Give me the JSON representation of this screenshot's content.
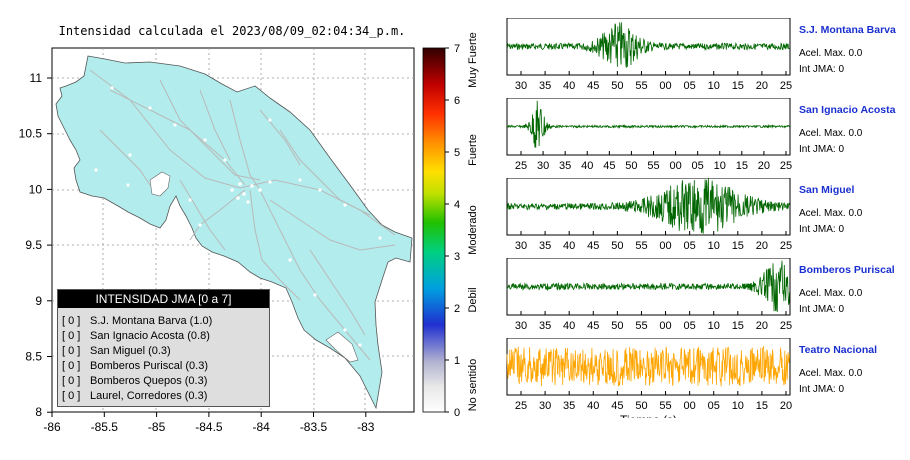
{
  "map": {
    "title": "Intensidad calculada el 2023/08/09_02:04:34_p.m.",
    "x_ticks": [
      "-86",
      "-85.5",
      "-85",
      "-84.5",
      "-84",
      "-83.5",
      "-83"
    ],
    "y_ticks": [
      "11",
      "10.5",
      "10",
      "9.5",
      "9",
      "8.5",
      "8"
    ],
    "land_color": "#b2ecec",
    "road_color": "#b9b9b9"
  },
  "legend": {
    "title": "INTENSIDAD JMA [0 a 7]",
    "items": [
      {
        "badge": "[ 0 ]",
        "label": "S.J. Montana Barva (1.0)"
      },
      {
        "badge": "[ 0 ]",
        "label": "San Ignacio Acosta (0.8)"
      },
      {
        "badge": "[ 0 ]",
        "label": "San Miguel (0.3)"
      },
      {
        "badge": "[ 0 ]",
        "label": "Bomberos Puriscal (0.3)"
      },
      {
        "badge": "[ 0 ]",
        "label": "Bomberos Quepos (0.3)"
      },
      {
        "badge": "[ 0 ]",
        "label": "Laurel, Corredores (0.3)"
      }
    ]
  },
  "colorbar": {
    "ticks": [
      "0",
      "1",
      "2",
      "3",
      "4",
      "5",
      "6",
      "7"
    ],
    "labels": [
      "No sentido",
      "Debil",
      "Moderado",
      "Fuerte",
      "Muy Fuerte"
    ]
  },
  "chart_data": [
    {
      "type": "line",
      "name": "S.J. Montana Barva",
      "accel": "Acel. Max. 0.0",
      "jma": "Int JMA: 0",
      "color": "#006600",
      "x_ticks": [
        "30",
        "35",
        "40",
        "45",
        "50",
        "55",
        "00",
        "05",
        "10",
        "15",
        "20",
        "25"
      ],
      "bursts": [
        {
          "t": 0.4,
          "w": 0.07,
          "a": 0.85
        }
      ],
      "noise": 0.12
    },
    {
      "type": "line",
      "name": "San Ignacio Acosta",
      "accel": "Acel. Max. 0.0",
      "jma": "Int JMA: 0",
      "color": "#006600",
      "x_ticks": [
        "25",
        "30",
        "35",
        "40",
        "45",
        "50",
        "55",
        "00",
        "05",
        "10",
        "15",
        "20",
        "25"
      ],
      "bursts": [
        {
          "t": 0.11,
          "w": 0.025,
          "a": 1.0
        }
      ],
      "noise": 0.04
    },
    {
      "type": "line",
      "name": "San Miguel",
      "accel": "Acel. Max. 0.0",
      "jma": "Int JMA: 0",
      "color": "#006600",
      "x_ticks": [
        "30",
        "35",
        "40",
        "45",
        "50",
        "55",
        "00",
        "05",
        "10",
        "15",
        "20",
        "25"
      ],
      "bursts": [
        {
          "t": 0.68,
          "w": 0.16,
          "a": 1.0
        }
      ],
      "noise": 0.12
    },
    {
      "type": "line",
      "name": "Bomberos Puriscal",
      "accel": "Acel. Max. 0.0",
      "jma": "Int JMA: 0",
      "color": "#006600",
      "x_ticks": [
        "30",
        "35",
        "40",
        "45",
        "50",
        "55",
        "00",
        "05",
        "10",
        "15",
        "20",
        "25"
      ],
      "bursts": [
        {
          "t": 0.96,
          "w": 0.06,
          "a": 0.9
        }
      ],
      "noise": 0.12
    },
    {
      "type": "line",
      "name": "Teatro Nacional",
      "accel": "Acel. Max. 0.0",
      "jma": "Int JMA: 0",
      "color": "#ffa500",
      "x_ticks": [
        "25",
        "30",
        "35",
        "40",
        "45",
        "50",
        "55",
        "00",
        "05",
        "10",
        "15",
        "20"
      ],
      "bursts": [],
      "noise": 0.75,
      "xlabel": "Tiempo (s)"
    }
  ]
}
